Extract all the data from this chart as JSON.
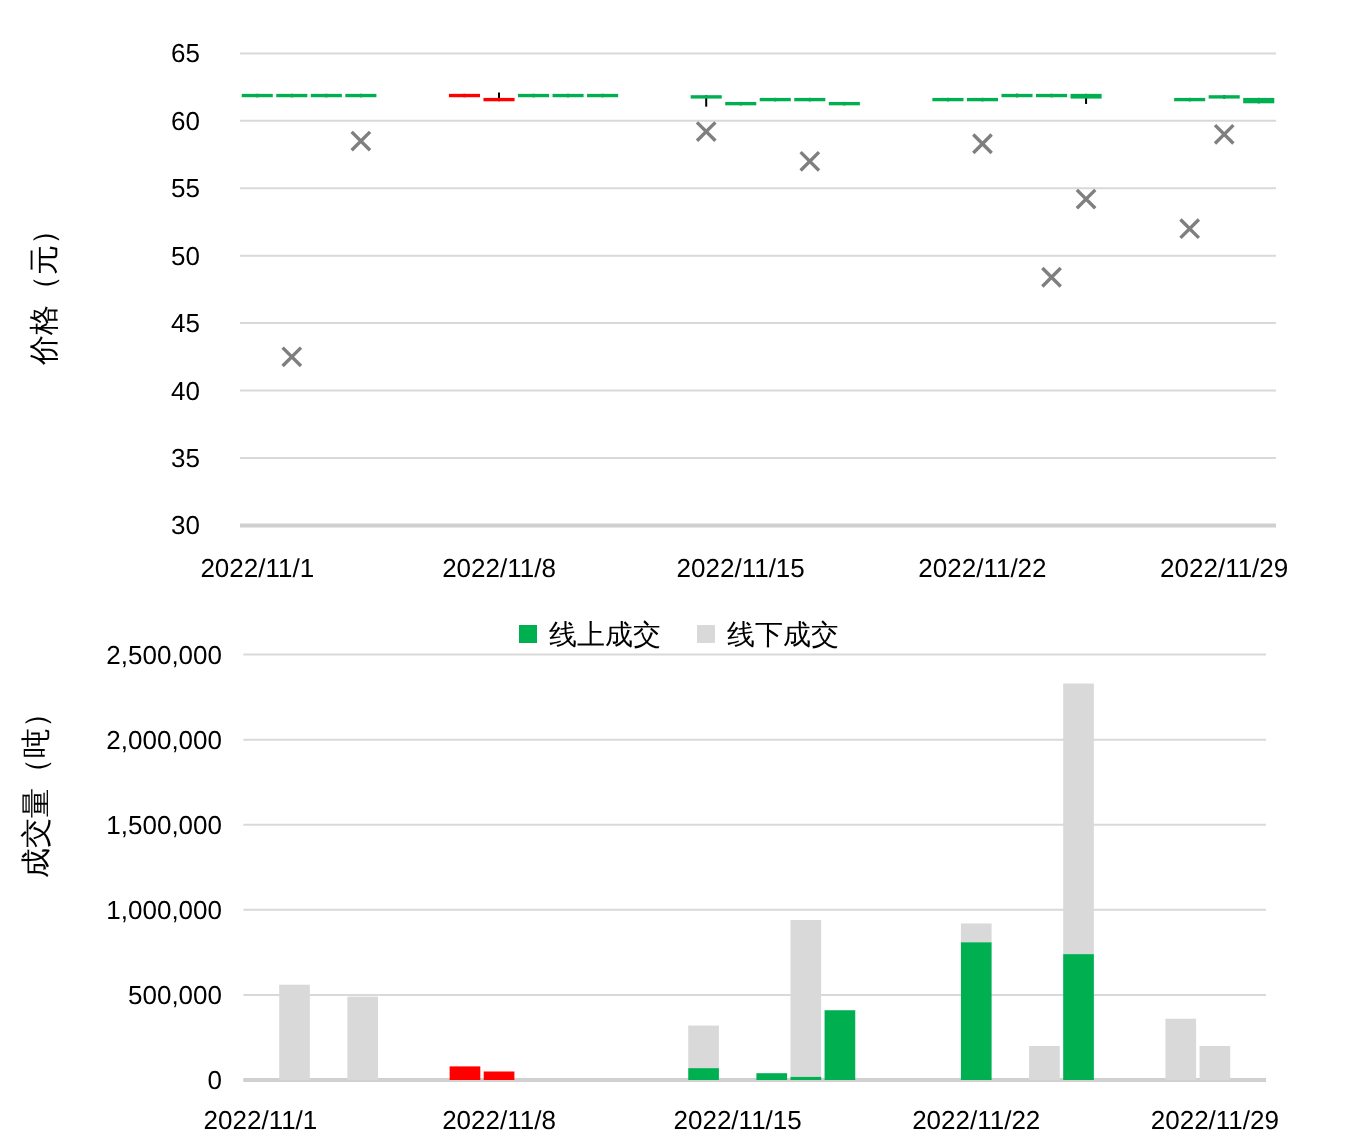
{
  "chart_data": [
    {
      "type": "candlestick",
      "ylabel": "价格（元）",
      "categories": [
        "2022/11/1",
        null,
        null,
        null,
        null,
        null,
        null,
        "2022/11/8",
        null,
        null,
        null,
        null,
        null,
        null,
        "2022/11/15",
        null,
        null,
        null,
        null,
        null,
        null,
        "2022/11/22",
        null,
        null,
        null,
        null,
        null,
        null,
        "2022/11/29",
        null
      ],
      "ohlc": [
        [
          62,
          62,
          61.75,
          61.75
        ],
        [
          62,
          62,
          61.75,
          61.75
        ],
        [
          62,
          62,
          61.75,
          61.75
        ],
        [
          62,
          62,
          61.75,
          61.75
        ],
        null,
        null,
        [
          61.75,
          62,
          61.75,
          62
        ],
        [
          61.45,
          62.1,
          61.45,
          61.7
        ],
        [
          62,
          62,
          61.75,
          61.75
        ],
        [
          62,
          62,
          61.75,
          61.75
        ],
        [
          62,
          62,
          61.75,
          61.75
        ],
        null,
        null,
        [
          61.9,
          61.9,
          61.05,
          61.65
        ],
        [
          61.4,
          61.4,
          61.15,
          61.15
        ],
        [
          61.7,
          61.7,
          61.45,
          61.45
        ],
        [
          61.7,
          61.7,
          61.45,
          61.45
        ],
        [
          61.4,
          61.4,
          61.15,
          61.15
        ],
        null,
        null,
        [
          61.7,
          61.7,
          61.45,
          61.45
        ],
        [
          61.7,
          61.7,
          61.45,
          61.45
        ],
        [
          62,
          62,
          61.75,
          61.75
        ],
        [
          62,
          62,
          61.75,
          61.75
        ],
        [
          62,
          62,
          61.25,
          61.65
        ],
        null,
        null,
        [
          61.7,
          61.7,
          61.45,
          61.45
        ],
        [
          61.9,
          61.9,
          61.65,
          61.65
        ],
        [
          61.7,
          61.7,
          61.3,
          61.3
        ]
      ],
      "colors": [
        "#00b050",
        "#00b050",
        "#00b050",
        "#00b050",
        null,
        null,
        "#ff0000",
        "#ff0000",
        "#00b050",
        "#00b050",
        "#00b050",
        null,
        null,
        "#00b050",
        "#00b050",
        "#00b050",
        "#00b050",
        "#00b050",
        null,
        null,
        "#00b050",
        "#00b050",
        "#00b050",
        "#00b050",
        "#00b050",
        null,
        null,
        "#00b050",
        "#00b050",
        "#00b050"
      ],
      "series": [
        {
          "type": "scatter",
          "color": "#7f7f7f",
          "marker": "cross",
          "values": [
            null,
            42.5,
            null,
            58.5,
            null,
            null,
            null,
            null,
            null,
            null,
            null,
            null,
            null,
            59.2,
            null,
            null,
            57.0,
            null,
            null,
            null,
            null,
            58.3,
            null,
            48.4,
            54.2,
            null,
            null,
            52.0,
            59.0,
            null
          ]
        }
      ],
      "ylim": [
        30,
        65
      ],
      "yticks": [
        30,
        35,
        40,
        45,
        50,
        55,
        60,
        65
      ],
      "grid": "y"
    },
    {
      "type": "bar",
      "stacked": true,
      "ylabel": "成交量（吨）",
      "legend": "top",
      "categories": [
        "2022/11/1",
        null,
        null,
        null,
        null,
        null,
        null,
        "2022/11/8",
        null,
        null,
        null,
        null,
        null,
        null,
        "2022/11/15",
        null,
        null,
        null,
        null,
        null,
        null,
        "2022/11/22",
        null,
        null,
        null,
        null,
        null,
        null,
        "2022/11/29",
        null
      ],
      "series": [
        {
          "name": "线上成交",
          "color": "#00b050",
          "colors": [
            null,
            null,
            null,
            null,
            null,
            null,
            "#ff0000",
            "#ff0000",
            null,
            null,
            null,
            null,
            null,
            "#00b050",
            null,
            "#00b050",
            "#00b050",
            "#00b050",
            null,
            null,
            null,
            "#00b050",
            null,
            null,
            "#00b050",
            null,
            null,
            null,
            null,
            null
          ],
          "values": [
            null,
            null,
            null,
            null,
            null,
            null,
            80000,
            50000,
            null,
            null,
            null,
            null,
            null,
            70000,
            null,
            40000,
            20000,
            410000,
            null,
            null,
            null,
            810000,
            null,
            null,
            740000,
            null,
            null,
            null,
            null,
            null
          ]
        },
        {
          "name": "线下成交",
          "color": "#d9d9d9",
          "values": [
            null,
            560000,
            null,
            490000,
            null,
            null,
            null,
            null,
            null,
            null,
            null,
            null,
            null,
            250000,
            null,
            null,
            920000,
            null,
            null,
            null,
            null,
            110000,
            null,
            200000,
            1590000,
            null,
            null,
            360000,
            200000,
            null
          ]
        }
      ],
      "ylim": [
        0,
        2500000
      ],
      "yticks": [
        0,
        {
          "value": 500000,
          "label": "500,000"
        },
        {
          "value": 1000000,
          "label": "1,000,000"
        },
        {
          "value": 1500000,
          "label": "1,500,000"
        },
        {
          "value": 2000000,
          "label": "2,000,000"
        },
        {
          "value": 2500000,
          "label": "2,500,000"
        }
      ],
      "grid": "y"
    }
  ]
}
